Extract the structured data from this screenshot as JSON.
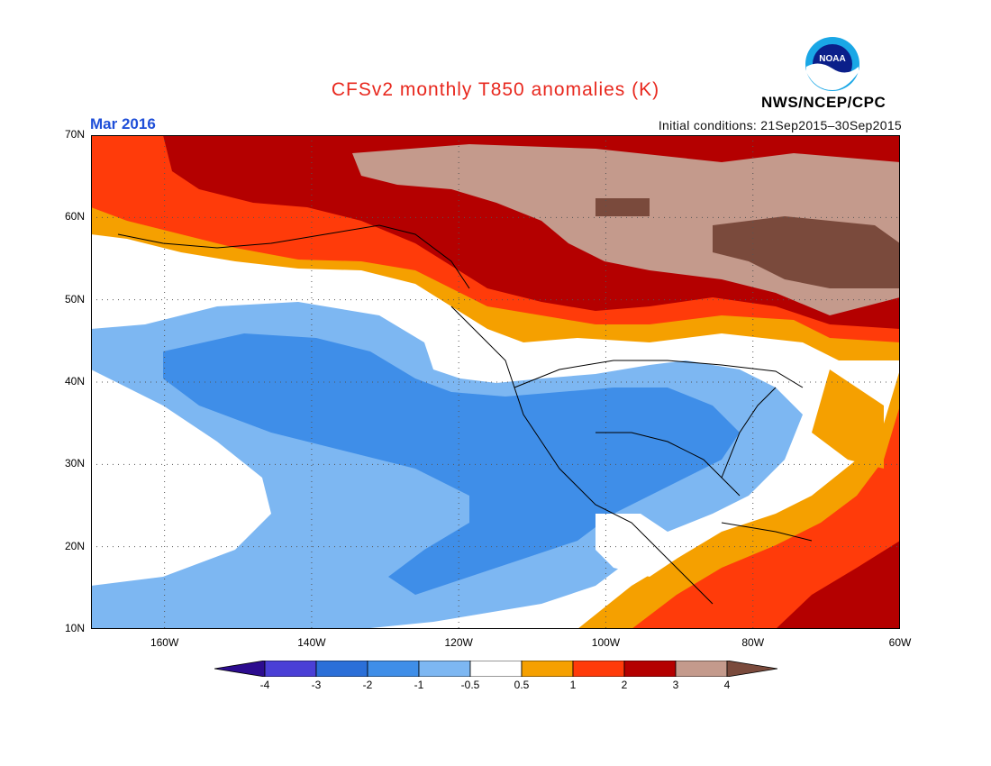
{
  "header": {
    "title": "CFSv2 monthly T850 anomalies (K)",
    "month": "Mar 2016",
    "initial_conditions": "Initial conditions: 21Sep2015–30Sep2015",
    "agency": "NWS/NCEP/CPC",
    "logo_icon": "noaa-logo-icon",
    "logo_text": "NOAA"
  },
  "map": {
    "lat_labels": [
      "70N",
      "60N",
      "50N",
      "40N",
      "30N",
      "20N",
      "10N"
    ],
    "lon_labels": [
      "160W",
      "140W",
      "120W",
      "100W",
      "80W",
      "60W"
    ],
    "lat_range": [
      10,
      70
    ],
    "lon_range": [
      -170,
      -60
    ],
    "grid": "dotted"
  },
  "colorbar": {
    "labels": [
      "-4",
      "-3",
      "-2",
      "-1",
      "-0.5",
      "0.5",
      "1",
      "2",
      "3",
      "4"
    ],
    "colors": [
      "#2c0c8f",
      "#4a3fd6",
      "#2b6fd8",
      "#3f8ee8",
      "#7db7f2",
      "#ffffff",
      "#f5a000",
      "#ff3b0a",
      "#b40000",
      "#c49a8c",
      "#7a4a3c"
    ]
  },
  "colors": {
    "title": "#e8281e",
    "month": "#1f4fd8"
  }
}
